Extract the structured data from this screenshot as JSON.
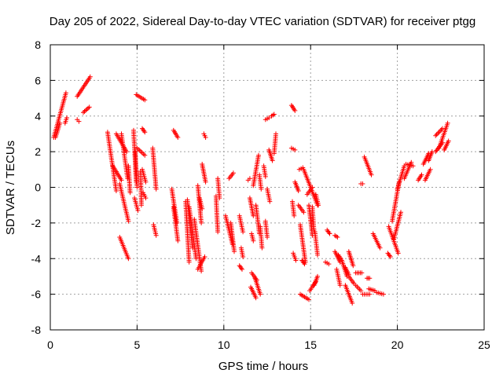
{
  "chart_data": {
    "type": "scatter",
    "title": "Day 205 of 2022, Sidereal Day-to-day VTEC variation (SDTVAR) for receiver ptgg",
    "xlabel": "GPS time / hours",
    "ylabel": "SDTVAR / TECUs",
    "xlim": [
      0,
      25
    ],
    "ylim": [
      -8,
      8
    ],
    "xticks": [
      "0",
      "5",
      "10",
      "15",
      "20",
      "25"
    ],
    "yticks": [
      "-8",
      "-6",
      "-4",
      "-2",
      "0",
      "2",
      "4",
      "6",
      "8"
    ],
    "grid": true,
    "marker": "plus",
    "color": "#ff0000",
    "series": [
      {
        "name": "SDTVAR",
        "segments": [
          [
            0.2,
            2.8,
            0.9,
            5.3
          ],
          [
            0.3,
            2.8,
            0.55,
            3.6
          ],
          [
            0.85,
            3.6,
            0.95,
            3.9
          ],
          [
            1.55,
            3.8,
            1.65,
            3.7
          ],
          [
            1.55,
            5.1,
            2.3,
            6.2
          ],
          [
            1.9,
            4.2,
            2.25,
            4.5
          ],
          [
            3.3,
            3.1,
            3.8,
            -0.2
          ],
          [
            3.6,
            1.2,
            4.1,
            0.4
          ],
          [
            3.8,
            3.0,
            4.4,
            2.0
          ],
          [
            4.0,
            0.2,
            4.5,
            -1.9
          ],
          [
            4.0,
            -2.8,
            4.5,
            -4.0
          ],
          [
            4.1,
            3.0,
            4.45,
            0.5
          ],
          [
            4.5,
            1.2,
            4.6,
            -0.3
          ],
          [
            4.95,
            5.2,
            5.45,
            4.9
          ],
          [
            4.8,
            3.2,
            4.95,
            0.3
          ],
          [
            4.85,
            -0.6,
            5.05,
            -1.3
          ],
          [
            4.9,
            2.0,
            5.0,
            0.0
          ],
          [
            5.0,
            2.2,
            5.45,
            1.8
          ],
          [
            5.2,
            0.9,
            5.25,
            -1.0
          ],
          [
            5.3,
            3.3,
            5.45,
            3.1
          ],
          [
            5.3,
            1.0,
            5.5,
            0.3
          ],
          [
            5.35,
            -0.3,
            5.5,
            -0.6
          ],
          [
            5.9,
            2.2,
            6.1,
            -0.1
          ],
          [
            5.95,
            -2.1,
            6.1,
            -2.7
          ],
          [
            7.1,
            3.2,
            7.35,
            2.8
          ],
          [
            7.0,
            -0.1,
            7.3,
            -2.0
          ],
          [
            7.1,
            -1.1,
            7.35,
            -3.0
          ],
          [
            7.8,
            -0.8,
            8.0,
            -4.2
          ],
          [
            7.9,
            -0.7,
            8.2,
            -3.4
          ],
          [
            8.0,
            -1.1,
            8.4,
            -4.0
          ],
          [
            8.3,
            -1.8,
            8.7,
            -4.7
          ],
          [
            8.5,
            -4.6,
            8.9,
            -3.9
          ],
          [
            8.5,
            0.1,
            8.7,
            -2.0
          ],
          [
            8.75,
            1.3,
            8.95,
            0.3
          ],
          [
            8.85,
            3.0,
            8.95,
            2.8
          ],
          [
            8.6,
            -0.6,
            8.75,
            -1.2
          ],
          [
            9.55,
            -0.5,
            9.65,
            -2.5
          ],
          [
            9.65,
            0.5,
            9.75,
            -0.6
          ],
          [
            10.1,
            -1.6,
            10.5,
            -3.2
          ],
          [
            10.4,
            -2.0,
            10.6,
            -3.6
          ],
          [
            10.3,
            0.5,
            10.55,
            0.8
          ],
          [
            10.9,
            -1.6,
            11.1,
            -2.5
          ],
          [
            11.0,
            -3.4,
            11.1,
            -3.9
          ],
          [
            10.9,
            -4.4,
            11.05,
            -4.6
          ],
          [
            11.6,
            -4.8,
            11.9,
            -5.2
          ],
          [
            11.55,
            -5.6,
            11.85,
            -6.2
          ],
          [
            11.8,
            -5.1,
            12.1,
            -6.0
          ],
          [
            11.4,
            0.4,
            11.5,
            0.5
          ],
          [
            11.5,
            -0.6,
            11.7,
            -1.6
          ],
          [
            11.6,
            -2.6,
            11.7,
            -3.0
          ],
          [
            11.7,
            0.1,
            12.0,
            1.8
          ],
          [
            11.85,
            -1.0,
            12.05,
            -2.6
          ],
          [
            12.05,
            0.7,
            12.15,
            -0.1
          ],
          [
            12.1,
            -2.2,
            12.2,
            -3.4
          ],
          [
            12.3,
            1.2,
            12.4,
            0.6
          ],
          [
            12.4,
            3.8,
            12.6,
            3.9
          ],
          [
            12.4,
            -1.9,
            12.5,
            -2.8
          ],
          [
            12.5,
            -0.1,
            12.65,
            -0.8
          ],
          [
            12.6,
            2.1,
            12.8,
            1.5
          ],
          [
            12.75,
            4.0,
            12.9,
            4.1
          ],
          [
            12.9,
            1.9,
            13.0,
            3.0
          ],
          [
            13.9,
            4.6,
            14.1,
            4.3
          ],
          [
            13.9,
            2.2,
            14.1,
            2.1
          ],
          [
            13.95,
            -0.8,
            14.05,
            -1.6
          ],
          [
            14.0,
            -3.7,
            14.15,
            -4.1
          ],
          [
            14.35,
            1.0,
            14.55,
            1.1
          ],
          [
            14.1,
            0.3,
            14.3,
            -0.2
          ],
          [
            14.3,
            -1.0,
            14.6,
            -1.4
          ],
          [
            14.4,
            -2.1,
            14.7,
            -4.2
          ],
          [
            14.4,
            -6.0,
            14.9,
            -6.3
          ],
          [
            14.5,
            -4.1,
            14.65,
            -4.3
          ],
          [
            14.6,
            1.0,
            15.4,
            -1.0
          ],
          [
            14.8,
            -0.4,
            15.1,
            0.0
          ],
          [
            14.9,
            -1.0,
            15.1,
            -2.7
          ],
          [
            14.95,
            -5.8,
            15.3,
            -5.3
          ],
          [
            15.1,
            -1.1,
            15.2,
            -2.5
          ],
          [
            15.2,
            -5.5,
            15.4,
            -5.0
          ],
          [
            15.25,
            -2.5,
            15.4,
            -3.8
          ],
          [
            15.3,
            -0.4,
            15.45,
            -1.0
          ],
          [
            15.95,
            -2.4,
            16.1,
            -2.6
          ],
          [
            15.85,
            -4.2,
            16.05,
            -4.3
          ],
          [
            16.4,
            -2.7,
            16.55,
            -2.8
          ],
          [
            16.4,
            -3.6,
            16.7,
            -4.2
          ],
          [
            16.5,
            -4.6,
            16.7,
            -5.5
          ],
          [
            16.6,
            -3.8,
            16.8,
            -4.1
          ],
          [
            16.8,
            -4.1,
            17.1,
            -5.0
          ],
          [
            17.0,
            -5.5,
            17.4,
            -6.5
          ],
          [
            17.2,
            -3.6,
            17.45,
            -4.4
          ],
          [
            17.0,
            -4.5,
            17.2,
            -4.9
          ],
          [
            17.2,
            -5.0,
            17.5,
            -5.4
          ],
          [
            17.6,
            -5.5,
            17.9,
            -5.8
          ],
          [
            17.6,
            -4.8,
            17.95,
            -4.8
          ],
          [
            17.9,
            0.2,
            18.0,
            0.2
          ],
          [
            18.0,
            -6.0,
            18.4,
            -6.0
          ],
          [
            18.25,
            -5.1,
            18.4,
            -5.1
          ],
          [
            18.1,
            1.7,
            18.5,
            0.7
          ],
          [
            18.35,
            -5.7,
            18.7,
            -5.8
          ],
          [
            18.6,
            -2.6,
            19.0,
            -3.4
          ],
          [
            18.8,
            -5.9,
            19.2,
            -6.0
          ],
          [
            19.5,
            -2.2,
            20.05,
            -3.7
          ],
          [
            19.45,
            -3.7,
            19.6,
            -3.9
          ],
          [
            19.7,
            -1.9,
            20.1,
            0.3
          ],
          [
            19.8,
            -2.9,
            20.2,
            -1.4
          ],
          [
            20.0,
            -0.1,
            20.4,
            1.2
          ],
          [
            20.4,
            0.5,
            20.8,
            1.4
          ],
          [
            20.5,
            1.3,
            20.9,
            1.2
          ],
          [
            21.2,
            0.4,
            21.4,
            0.7
          ],
          [
            21.5,
            1.3,
            21.8,
            1.9
          ],
          [
            21.6,
            0.4,
            21.9,
            1.0
          ],
          [
            21.8,
            1.5,
            22.0,
            2.0
          ],
          [
            22.2,
            2.0,
            22.6,
            2.5
          ],
          [
            22.2,
            2.9,
            22.6,
            3.3
          ],
          [
            22.4,
            2.2,
            22.9,
            3.6
          ],
          [
            22.7,
            2.1,
            22.95,
            2.6
          ]
        ]
      }
    ]
  }
}
